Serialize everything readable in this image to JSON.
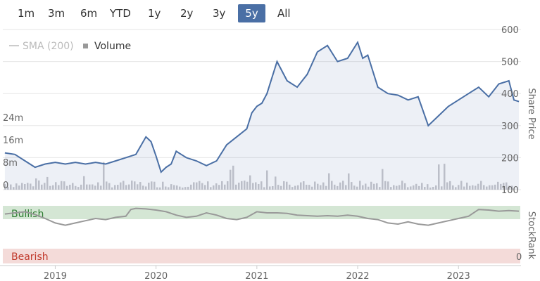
{
  "range_buttons": [
    {
      "label": "1m",
      "active": false
    },
    {
      "label": "3m",
      "active": false
    },
    {
      "label": "6m",
      "active": false
    },
    {
      "label": "YTD",
      "active": false
    },
    {
      "label": "1y",
      "active": false
    },
    {
      "label": "2y",
      "active": false
    },
    {
      "label": "3y",
      "active": false
    },
    {
      "label": "5y",
      "active": true
    },
    {
      "label": "All",
      "active": false
    }
  ],
  "legend": {
    "sma_label": "SMA (200)",
    "volume_label": "Volume"
  },
  "colors": {
    "price": "#4a6fa5",
    "bullish": "#3a8f3a",
    "bearish": "#c0392b",
    "neutral": "#999999",
    "volume": "#c8c8cc"
  },
  "chart_data": [
    {
      "type": "line",
      "title": "",
      "ylabel": "Share Price",
      "ylim": [
        100,
        600
      ],
      "yticks": [
        100,
        200,
        300,
        400,
        500,
        600
      ],
      "xlabels": [
        "2019",
        "2020",
        "2021",
        "2022",
        "2023"
      ],
      "series": [
        {
          "name": "",
          "x": [
            2018.5,
            2018.6,
            2018.7,
            2018.8,
            2018.9,
            2019.0,
            2019.1,
            2019.2,
            2019.3,
            2019.4,
            2019.5,
            2019.6,
            2019.7,
            2019.8,
            2019.9,
            2019.95,
            2020.0,
            2020.05,
            2020.1,
            2020.15,
            2020.2,
            2020.25,
            2020.3,
            2020.4,
            2020.5,
            2020.6,
            2020.7,
            2020.8,
            2020.9,
            2020.95,
            2021.0,
            2021.05,
            2021.1,
            2021.15,
            2021.2,
            2021.3,
            2021.4,
            2021.5,
            2021.6,
            2021.7,
            2021.8,
            2021.9,
            2022.0,
            2022.05,
            2022.1,
            2022.2,
            2022.3,
            2022.4,
            2022.5,
            2022.6,
            2022.7,
            2022.8,
            2022.9,
            2023.0,
            2023.1,
            2023.2,
            2023.3,
            2023.4,
            2023.5,
            2023.55,
            2023.6
          ],
          "values": [
            215,
            210,
            190,
            170,
            180,
            185,
            180,
            185,
            180,
            185,
            180,
            190,
            200,
            210,
            265,
            250,
            205,
            155,
            170,
            180,
            220,
            210,
            200,
            190,
            175,
            190,
            240,
            265,
            290,
            340,
            360,
            370,
            400,
            450,
            500,
            440,
            420,
            460,
            530,
            550,
            500,
            510,
            560,
            510,
            520,
            420,
            400,
            395,
            380,
            390,
            300,
            330,
            360,
            380,
            400,
            420,
            390,
            430,
            440,
            380,
            375
          ]
        }
      ],
      "volume": {
        "ylim": [
          0,
          24
        ],
        "yticks_labels": [
          "0",
          "8m",
          "16m",
          "24m"
        ]
      }
    },
    {
      "type": "line",
      "title": "",
      "ylabel": "StockRank",
      "bands": [
        {
          "label": "Bullish"
        },
        {
          "label": "Bearish"
        }
      ],
      "ytick_label": "0",
      "series": [
        {
          "name": "",
          "x": [
            2018.5,
            2018.6,
            2018.7,
            2018.8,
            2018.9,
            2019.0,
            2019.1,
            2019.2,
            2019.3,
            2019.4,
            2019.5,
            2019.6,
            2019.7,
            2019.75,
            2019.8,
            2019.9,
            2020.0,
            2020.1,
            2020.2,
            2020.3,
            2020.4,
            2020.5,
            2020.6,
            2020.7,
            2020.8,
            2020.9,
            2021.0,
            2021.1,
            2021.2,
            2021.3,
            2021.4,
            2021.5,
            2021.6,
            2021.7,
            2021.8,
            2021.9,
            2022.0,
            2022.1,
            2022.2,
            2022.3,
            2022.4,
            2022.5,
            2022.6,
            2022.7,
            2022.8,
            2022.9,
            2023.0,
            2023.1,
            2023.2,
            2023.3,
            2023.4,
            2023.5,
            2023.6
          ],
          "values": [
            88,
            90,
            92,
            87,
            80,
            72,
            68,
            72,
            76,
            80,
            78,
            82,
            84,
            96,
            98,
            97,
            95,
            92,
            86,
            82,
            84,
            90,
            86,
            80,
            78,
            82,
            92,
            90,
            90,
            89,
            86,
            85,
            84,
            85,
            84,
            86,
            84,
            80,
            78,
            72,
            70,
            74,
            70,
            68,
            72,
            76,
            80,
            84,
            96,
            95,
            93,
            94,
            93
          ]
        }
      ]
    }
  ]
}
